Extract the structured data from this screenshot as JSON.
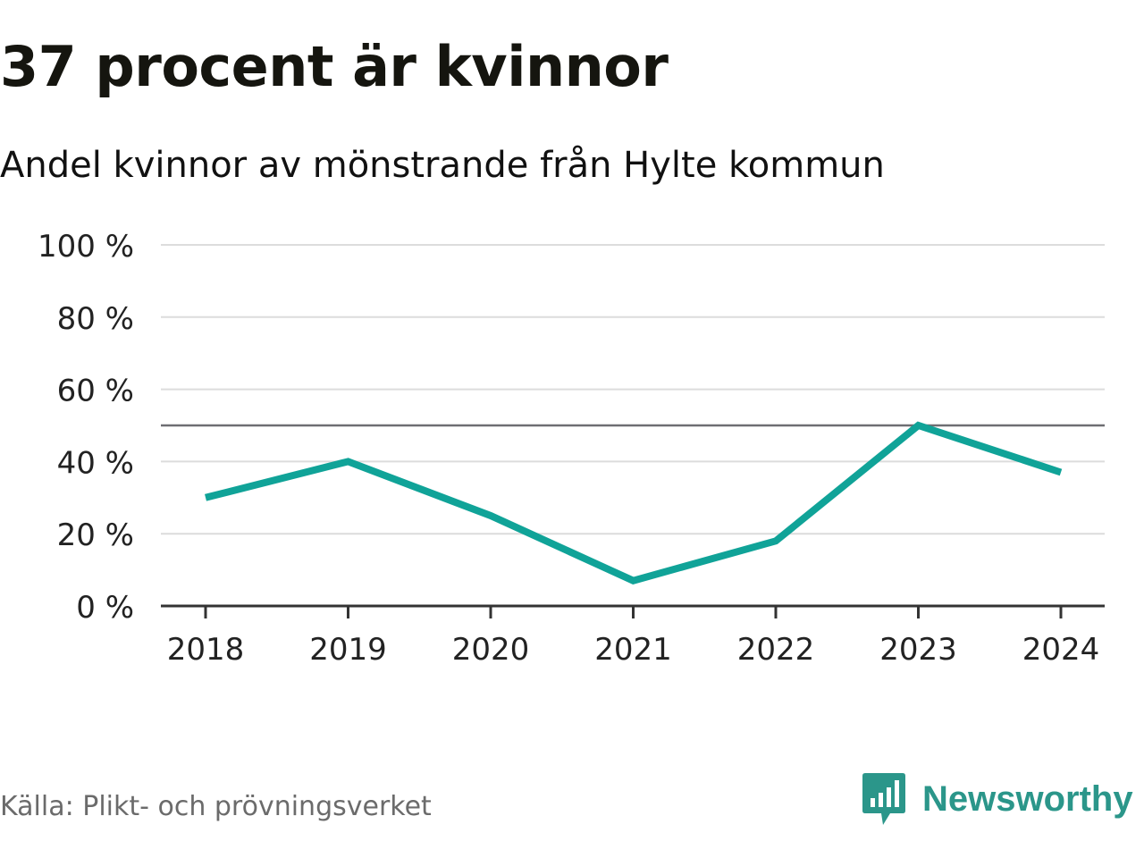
{
  "header": {
    "title": "37 procent är kvinnor",
    "subtitle": "Andel kvinnor av mönstrande från Hylte kommun"
  },
  "footer": {
    "source": "Källa: Plikt- och prövningsverket",
    "brand_name": "Newsworthy",
    "brand_icon": "bar-chart-speech-bubble-icon"
  },
  "colors": {
    "series": "#10a398",
    "reference_line": "#6e6e72",
    "grid": "#dcdcdc",
    "axis": "#333333",
    "brand": "#2b968a"
  },
  "chart_data": {
    "type": "line",
    "categories": [
      "2018",
      "2019",
      "2020",
      "2021",
      "2022",
      "2023",
      "2024"
    ],
    "series": [
      {
        "values": [
          30,
          40,
          25,
          7,
          18,
          50,
          37
        ]
      }
    ],
    "reference_line": 50,
    "ylim": [
      0,
      100
    ],
    "yticks": [
      0,
      20,
      40,
      60,
      80,
      100
    ],
    "ytick_labels": [
      "0 %",
      "20 %",
      "40 %",
      "60 %",
      "80 %",
      "100 %"
    ],
    "grid": true,
    "legend": "none"
  }
}
